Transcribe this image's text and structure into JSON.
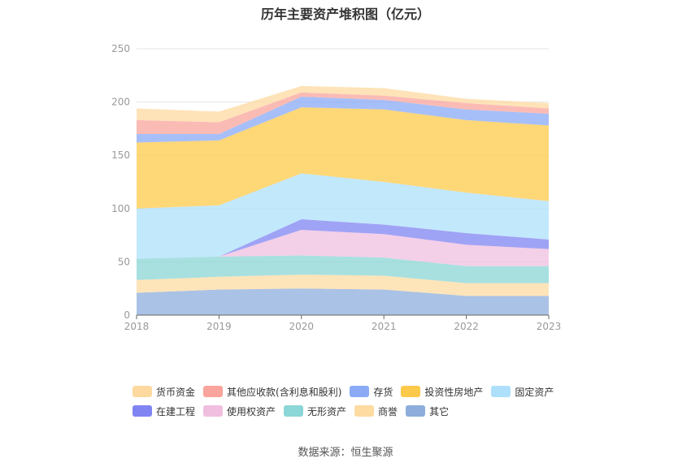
{
  "chart_data": {
    "type": "area",
    "stacked": true,
    "title": "历年主要资产堆积图（亿元）",
    "categories": [
      "2018",
      "2019",
      "2020",
      "2021",
      "2022",
      "2023"
    ],
    "ylim": [
      0,
      250
    ],
    "yticks": [
      0,
      50,
      100,
      150,
      200,
      250
    ],
    "grid": true,
    "legend_position": "bottom",
    "series": [
      {
        "name": "其它",
        "color": "#8eaddc",
        "values": [
          21,
          24,
          25,
          24,
          18,
          18
        ]
      },
      {
        "name": "商誉",
        "color": "#fddba1",
        "values": [
          12,
          12,
          13,
          13,
          12,
          12
        ]
      },
      {
        "name": "无形资产",
        "color": "#8bd6d6",
        "values": [
          20,
          19,
          18,
          17,
          16,
          16
        ]
      },
      {
        "name": "使用权资产",
        "color": "#f0bfe0",
        "values": [
          0,
          0,
          24,
          22,
          20,
          16
        ]
      },
      {
        "name": "在建工程",
        "color": "#7f84f2",
        "values": [
          0,
          0,
          10,
          9,
          11,
          9
        ]
      },
      {
        "name": "固定资产",
        "color": "#aee0fb",
        "values": [
          47,
          48,
          43,
          40,
          38,
          36
        ]
      },
      {
        "name": "投资性房地产",
        "color": "#fdc94a",
        "values": [
          62,
          61,
          62,
          68,
          68,
          71
        ]
      },
      {
        "name": "存货",
        "color": "#8aaaf5",
        "values": [
          8,
          6,
          10,
          9,
          10,
          11
        ]
      },
      {
        "name": "其他应收款(含利息和股利)",
        "color": "#f9a49c",
        "values": [
          13,
          11,
          4,
          4,
          6,
          5
        ]
      },
      {
        "name": "货币资金",
        "color": "#fdd9a0",
        "values": [
          11,
          10,
          6,
          7,
          4,
          5
        ]
      }
    ]
  },
  "legend": {
    "rows": [
      [
        "货币资金",
        "其他应收款(含利息和股利)",
        "存货",
        "投资性房地产",
        "固定资产"
      ],
      [
        "在建工程",
        "使用权资产",
        "无形资产",
        "商誉",
        "其它"
      ]
    ]
  },
  "source": "数据来源：恒生聚源"
}
